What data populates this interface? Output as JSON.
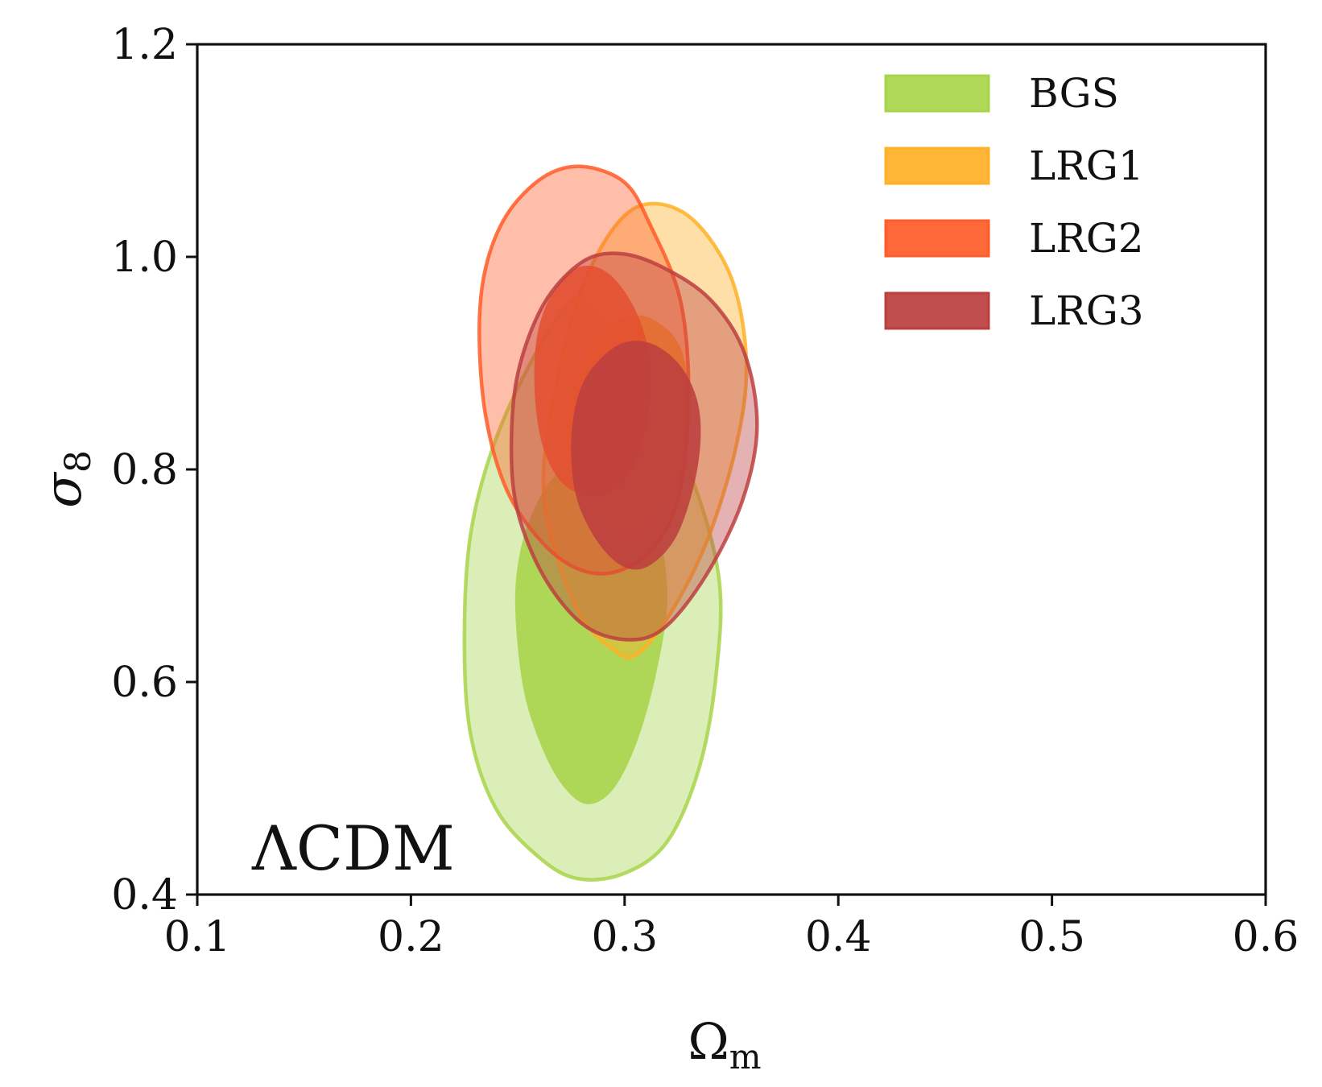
{
  "chart_data": {
    "type": "contour",
    "annotation": "ΛCDM",
    "xlabel": {
      "main": "Ω",
      "sub": "m"
    },
    "ylabel": {
      "main": "σ",
      "sub": "8"
    },
    "xlim": [
      0.1,
      0.6
    ],
    "ylim": [
      0.4,
      1.2
    ],
    "xticks": [
      0.1,
      0.2,
      0.3,
      0.4,
      0.5,
      0.6
    ],
    "xtick_labels": [
      "0.1",
      "0.2",
      "0.3",
      "0.4",
      "0.5",
      "0.6"
    ],
    "yticks": [
      0.4,
      0.6,
      0.8,
      1.0,
      1.2
    ],
    "ytick_labels": [
      "0.4",
      "0.6",
      "0.8",
      "1.0",
      "1.2"
    ],
    "legend_position": "top-right",
    "series": [
      {
        "name": "BGS",
        "color": "#a8d44a",
        "contour_95": [
          [
            0.225,
            0.64
          ],
          [
            0.228,
            0.55
          ],
          [
            0.24,
            0.48
          ],
          [
            0.26,
            0.435
          ],
          [
            0.278,
            0.415
          ],
          [
            0.3,
            0.42
          ],
          [
            0.32,
            0.45
          ],
          [
            0.335,
            0.52
          ],
          [
            0.343,
            0.61
          ],
          [
            0.344,
            0.7
          ],
          [
            0.33,
            0.8
          ],
          [
            0.31,
            0.88
          ],
          [
            0.29,
            0.94
          ],
          [
            0.277,
            0.96
          ],
          [
            0.26,
            0.915
          ],
          [
            0.24,
            0.83
          ],
          [
            0.228,
            0.74
          ]
        ],
        "contour_68": [
          [
            0.249,
            0.66
          ],
          [
            0.253,
            0.59
          ],
          [
            0.262,
            0.535
          ],
          [
            0.272,
            0.5
          ],
          [
            0.283,
            0.485
          ],
          [
            0.295,
            0.5
          ],
          [
            0.306,
            0.545
          ],
          [
            0.315,
            0.61
          ],
          [
            0.32,
            0.68
          ],
          [
            0.315,
            0.745
          ],
          [
            0.3,
            0.795
          ],
          [
            0.285,
            0.81
          ],
          [
            0.268,
            0.795
          ],
          [
            0.256,
            0.755
          ],
          [
            0.25,
            0.71
          ]
        ]
      },
      {
        "name": "LRG1",
        "color": "#ffb026",
        "contour_95": [
          [
            0.262,
            0.79
          ],
          [
            0.268,
            0.72
          ],
          [
            0.28,
            0.66
          ],
          [
            0.295,
            0.63
          ],
          [
            0.305,
            0.625
          ],
          [
            0.32,
            0.66
          ],
          [
            0.338,
            0.73
          ],
          [
            0.352,
            0.82
          ],
          [
            0.357,
            0.9
          ],
          [
            0.35,
            0.98
          ],
          [
            0.332,
            1.035
          ],
          [
            0.312,
            1.05
          ],
          [
            0.296,
            1.03
          ],
          [
            0.28,
            0.97
          ],
          [
            0.268,
            0.88
          ]
        ],
        "contour_68": [
          [
            0.272,
            0.84
          ],
          [
            0.278,
            0.79
          ],
          [
            0.29,
            0.75
          ],
          [
            0.305,
            0.74
          ],
          [
            0.318,
            0.76
          ],
          [
            0.327,
            0.8
          ],
          [
            0.33,
            0.86
          ],
          [
            0.327,
            0.91
          ],
          [
            0.318,
            0.935
          ],
          [
            0.305,
            0.945
          ],
          [
            0.29,
            0.93
          ],
          [
            0.279,
            0.895
          ]
        ]
      },
      {
        "name": "LRG2",
        "color": "#ff5c28",
        "contour_95": [
          [
            0.232,
            0.93
          ],
          [
            0.235,
            0.85
          ],
          [
            0.245,
            0.78
          ],
          [
            0.262,
            0.73
          ],
          [
            0.28,
            0.705
          ],
          [
            0.298,
            0.705
          ],
          [
            0.315,
            0.73
          ],
          [
            0.326,
            0.78
          ],
          [
            0.33,
            0.87
          ],
          [
            0.326,
            0.96
          ],
          [
            0.312,
            1.03
          ],
          [
            0.3,
            1.07
          ],
          [
            0.28,
            1.085
          ],
          [
            0.262,
            1.075
          ],
          [
            0.245,
            1.04
          ],
          [
            0.235,
            0.99
          ]
        ],
        "contour_68": [
          [
            0.258,
            0.87
          ],
          [
            0.262,
            0.82
          ],
          [
            0.272,
            0.785
          ],
          [
            0.288,
            0.775
          ],
          [
            0.302,
            0.795
          ],
          [
            0.31,
            0.84
          ],
          [
            0.312,
            0.9
          ],
          [
            0.305,
            0.95
          ],
          [
            0.292,
            0.985
          ],
          [
            0.278,
            0.99
          ],
          [
            0.266,
            0.965
          ],
          [
            0.259,
            0.925
          ]
        ]
      },
      {
        "name": "LRG3",
        "color": "#bc3f3f",
        "contour_95": [
          [
            0.247,
            0.82
          ],
          [
            0.25,
            0.76
          ],
          [
            0.262,
            0.7
          ],
          [
            0.28,
            0.655
          ],
          [
            0.3,
            0.64
          ],
          [
            0.318,
            0.65
          ],
          [
            0.338,
            0.7
          ],
          [
            0.355,
            0.77
          ],
          [
            0.362,
            0.84
          ],
          [
            0.356,
            0.91
          ],
          [
            0.34,
            0.96
          ],
          [
            0.318,
            0.99
          ],
          [
            0.298,
            1.003
          ],
          [
            0.28,
            0.995
          ],
          [
            0.262,
            0.955
          ],
          [
            0.25,
            0.89
          ]
        ],
        "contour_68": [
          [
            0.275,
            0.815
          ],
          [
            0.278,
            0.77
          ],
          [
            0.288,
            0.73
          ],
          [
            0.3,
            0.708
          ],
          [
            0.312,
            0.71
          ],
          [
            0.325,
            0.74
          ],
          [
            0.334,
            0.8
          ],
          [
            0.335,
            0.855
          ],
          [
            0.327,
            0.895
          ],
          [
            0.313,
            0.918
          ],
          [
            0.298,
            0.918
          ],
          [
            0.284,
            0.893
          ],
          [
            0.277,
            0.86
          ]
        ]
      }
    ]
  }
}
